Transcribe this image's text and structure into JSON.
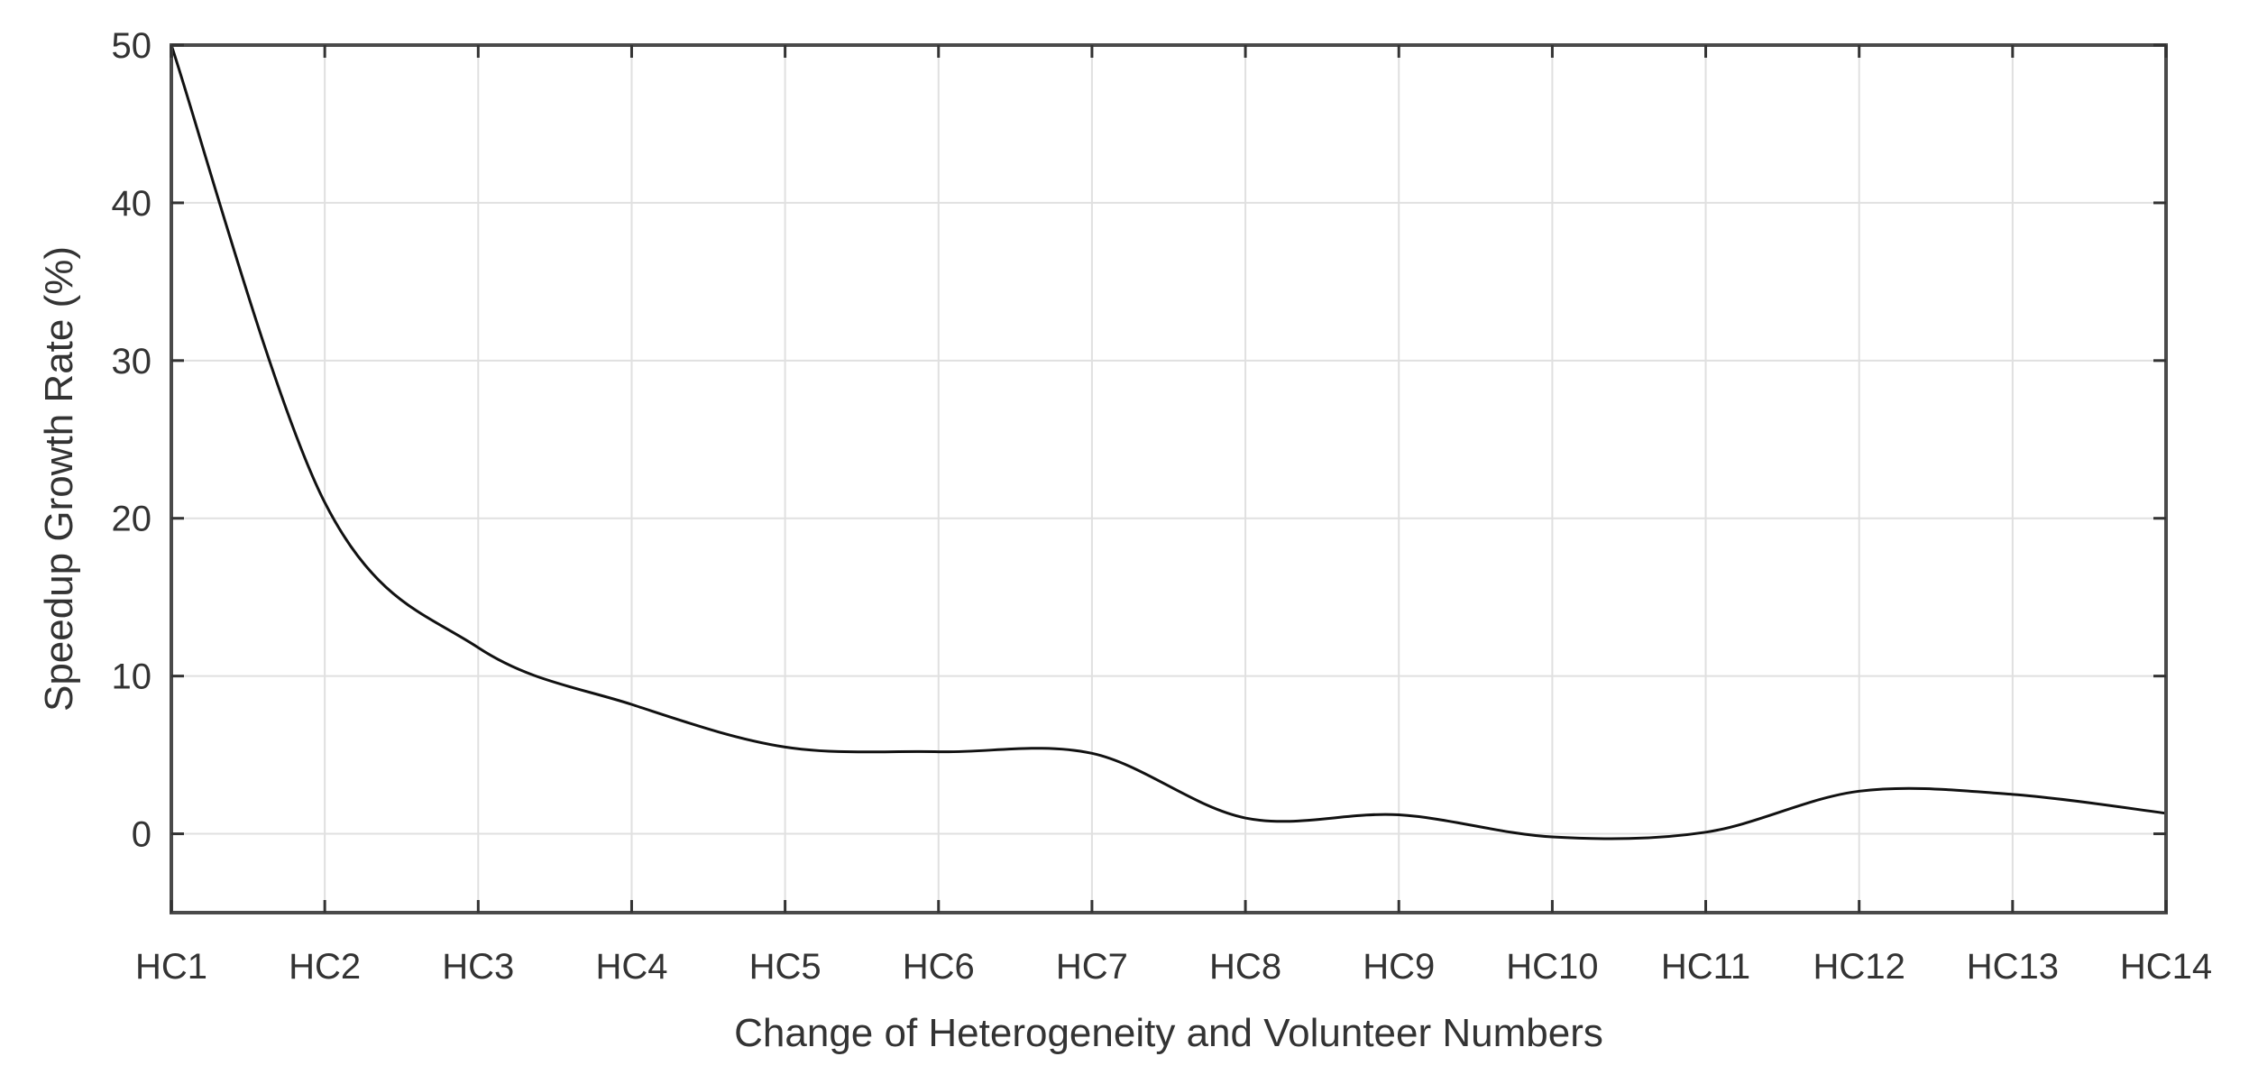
{
  "chart_data": {
    "type": "line",
    "title": "",
    "xlabel": "Change of Heterogeneity and Volunteer Numbers",
    "ylabel": "Speedup Growth Rate (%)",
    "categories": [
      "HC1",
      "HC2",
      "HC3",
      "HC4",
      "HC5",
      "HC6",
      "HC7",
      "HC8",
      "HC9",
      "HC10",
      "HC11",
      "HC12",
      "HC13",
      "HC14"
    ],
    "y_ticks": [
      0,
      10,
      20,
      30,
      40,
      50
    ],
    "ylim": [
      -5,
      50
    ],
    "grid": true,
    "legend": "none",
    "series": [
      {
        "values": [
          50.0,
          21.0,
          11.8,
          8.2,
          5.5,
          5.2,
          5.1,
          1.0,
          1.2,
          -0.2,
          0.1,
          2.7,
          2.5,
          1.3
        ],
        "color": "#111111"
      }
    ]
  }
}
